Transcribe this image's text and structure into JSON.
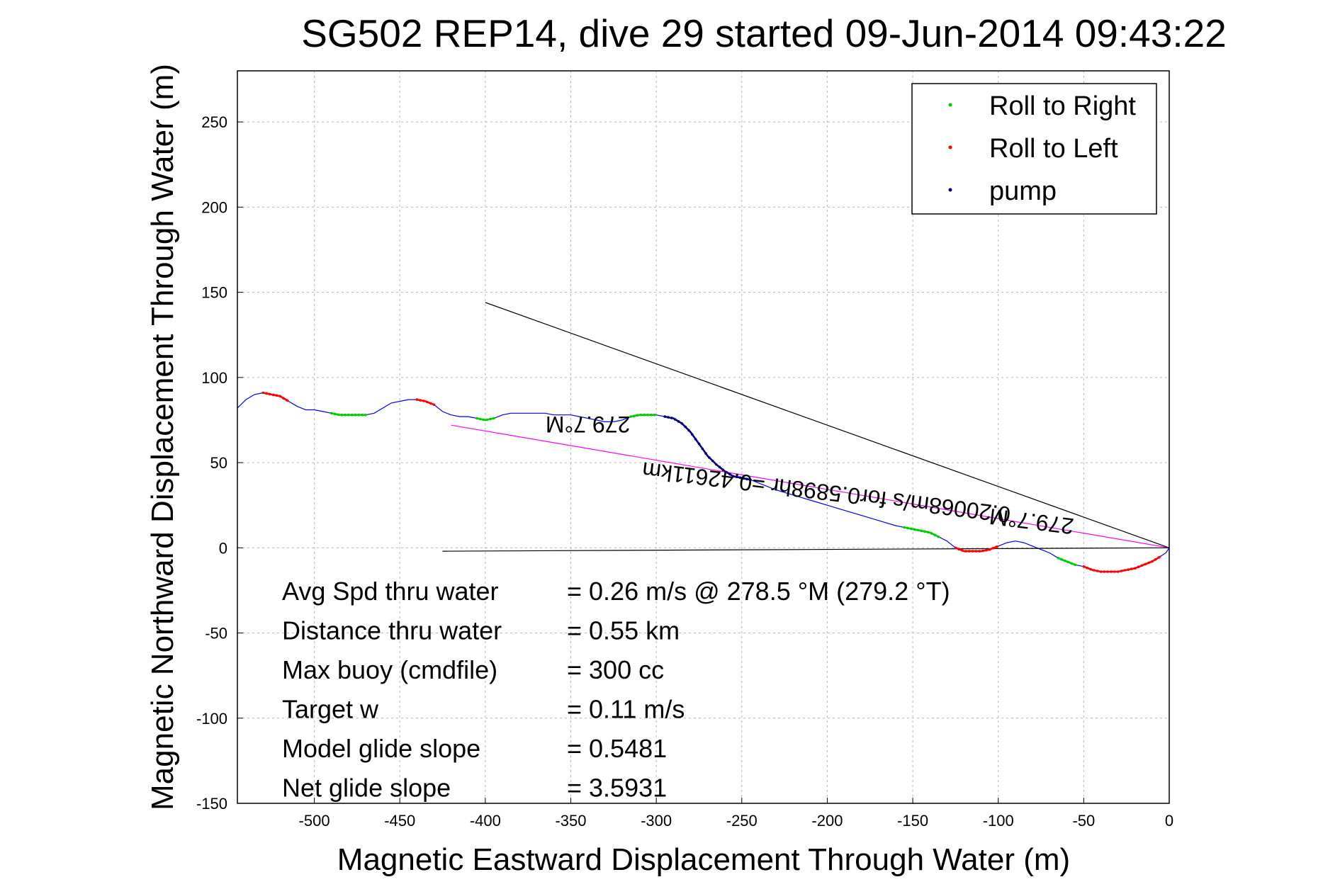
{
  "chart_data": {
    "type": "line",
    "title": "SG502 REP14, dive 29 started 09-Jun-2014 09:43:22",
    "xlabel": "Magnetic Eastward Displacement Through Water (m)",
    "ylabel": "Magnetic Northward Displacement Through Water (m)",
    "xlim": [
      -545,
      0
    ],
    "ylim": [
      -150,
      280
    ],
    "x_ticks": [
      -500,
      -450,
      -400,
      -350,
      -300,
      -250,
      -200,
      -150,
      -100,
      -50,
      0
    ],
    "y_ticks": [
      -150,
      -100,
      -50,
      0,
      50,
      100,
      150,
      200,
      250
    ],
    "grid": true,
    "legend_position": "top-right",
    "legend": [
      {
        "label": "Roll to Right",
        "color": "#00cc00"
      },
      {
        "label": "Roll to Left",
        "color": "#ff0000"
      },
      {
        "label": "pump",
        "color": "#000080"
      }
    ],
    "series": [
      {
        "name": "track",
        "color": "#0000ff",
        "x": [
          -545,
          -540,
          -535,
          -530,
          -525,
          -520,
          -515,
          -510,
          -505,
          -500,
          -495,
          -490,
          -485,
          -480,
          -475,
          -470,
          -465,
          -460,
          -455,
          -450,
          -445,
          -440,
          -435,
          -430,
          -425,
          -420,
          -415,
          -410,
          -405,
          -400,
          -395,
          -390,
          -385,
          -380,
          -375,
          -370,
          -365,
          -360,
          -355,
          -350,
          -345,
          -340,
          -335,
          -330,
          -325,
          -320,
          -315,
          -310,
          -305,
          -300,
          -295,
          -290,
          -285,
          -280,
          -275,
          -270,
          -265,
          -260,
          -255,
          -250,
          -245,
          -240,
          -230,
          -220,
          -210,
          -200,
          -190,
          -180,
          -170,
          -160,
          -150,
          -140,
          -130,
          -125,
          -120,
          -115,
          -110,
          -105,
          -100,
          -95,
          -90,
          -85,
          -80,
          -75,
          -70,
          -65,
          -60,
          -55,
          -50,
          -45,
          -40,
          -35,
          -30,
          -25,
          -20,
          -15,
          -10,
          -5,
          -2,
          0
        ],
        "y": [
          82,
          87,
          90,
          91,
          90,
          89,
          86,
          83,
          81,
          81,
          80,
          79,
          78,
          78,
          78,
          78,
          79,
          82,
          85,
          86,
          87,
          87,
          86,
          84,
          80,
          78,
          77,
          77,
          76,
          75,
          76,
          78,
          79,
          79,
          79,
          79,
          79,
          78,
          78,
          78,
          77,
          76,
          75,
          74,
          74,
          75,
          77,
          78,
          78,
          78,
          77,
          76,
          73,
          68,
          61,
          54,
          49,
          45,
          42,
          41,
          40,
          38,
          34,
          31,
          28,
          25,
          22,
          19,
          16,
          13,
          11,
          9,
          4,
          0,
          -2,
          -2,
          -2,
          -1,
          1,
          3,
          4,
          3,
          1,
          -1,
          -3,
          -6,
          -8,
          -10,
          -11,
          -13,
          -14,
          -14,
          -14,
          -13,
          -12,
          -10,
          -8,
          -5,
          -3,
          0
        ]
      },
      {
        "name": "heading line",
        "color": "#000000",
        "x": [
          -400,
          0
        ],
        "y": [
          144,
          0
        ]
      },
      {
        "name": "mean heading line",
        "color": "#ff00ff",
        "x": [
          -420,
          0
        ],
        "y": [
          72,
          0
        ]
      },
      {
        "name": "baseline",
        "color": "#000000",
        "x": [
          -425,
          0
        ],
        "y": [
          -2,
          0
        ]
      }
    ],
    "roll_right_ranges": [
      [
        -490,
        -470
      ],
      [
        -405,
        -395
      ],
      [
        -315,
        -300
      ],
      [
        -155,
        -135
      ],
      [
        -65,
        -55
      ]
    ],
    "roll_left_ranges": [
      [
        -530,
        -515
      ],
      [
        -440,
        -430
      ],
      [
        -125,
        -100
      ],
      [
        -50,
        -5
      ]
    ],
    "pump_ranges": [
      [
        -295,
        -245
      ]
    ],
    "annotations": [
      {
        "text": "279.7°M",
        "x": -340,
        "y": 77,
        "rotation": 180
      },
      {
        "text": "0.20068m/s for0.5898hr =0.42611km",
        "x": -200,
        "y": 37,
        "rotation": 187
      },
      {
        "text": "279.7°M",
        "x": -80,
        "y": 20,
        "rotation": 187
      }
    ],
    "stats": [
      {
        "label": "Avg Spd thru water",
        "value": "=  0.26 m/s @ 278.5 °M (279.2 °T)"
      },
      {
        "label": "Distance thru water",
        "value": "=  0.55 km"
      },
      {
        "label": "Max buoy (cmdfile)",
        "value": "= 300 cc"
      },
      {
        "label": "Target w",
        "value": "= 0.11 m/s"
      },
      {
        "label": "Model glide slope",
        "value": "= 0.5481"
      },
      {
        "label": "Net glide slope",
        "value": "= 3.5931"
      }
    ]
  }
}
